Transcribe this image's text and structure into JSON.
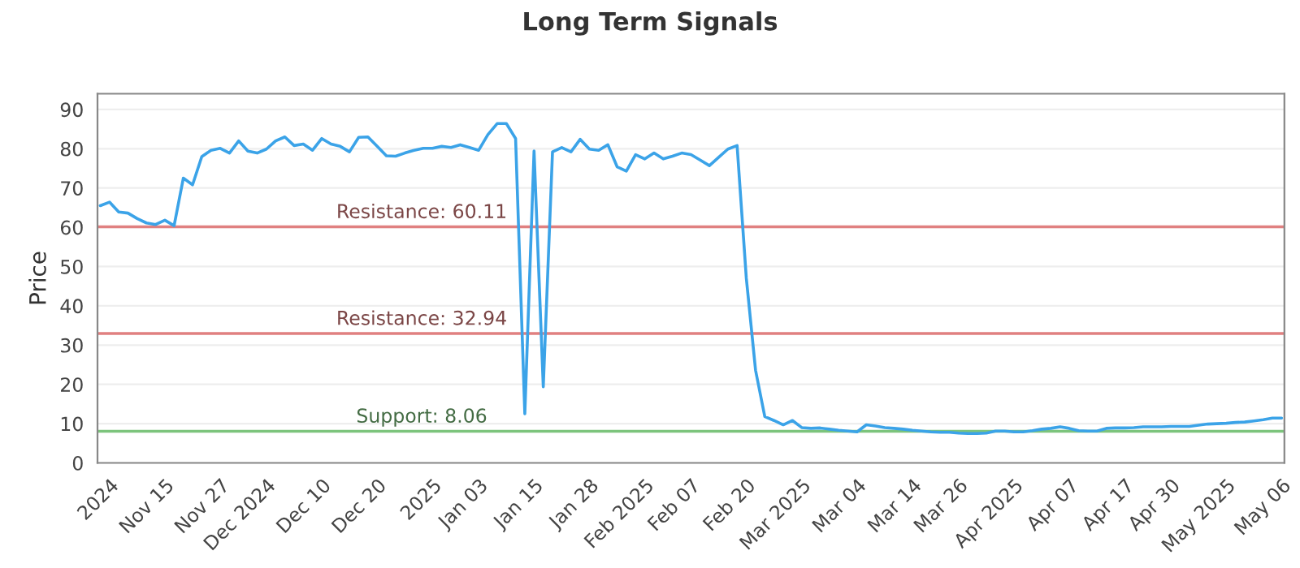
{
  "chart_data": {
    "type": "line",
    "title": "Long Term Signals",
    "ylabel": "Price",
    "categories": [
      null,
      "2024",
      null,
      null,
      null,
      null,
      null,
      "Nov 15",
      null,
      null,
      null,
      null,
      null,
      "Nov 27",
      null,
      null,
      null,
      null,
      "Dec 2024",
      null,
      null,
      null,
      null,
      null,
      "Dec 10",
      null,
      null,
      null,
      null,
      null,
      "Dec 20",
      null,
      null,
      null,
      null,
      null,
      "2025",
      null,
      null,
      null,
      null,
      "Jan 03",
      null,
      null,
      null,
      null,
      null,
      "Jan 15",
      null,
      null,
      null,
      null,
      null,
      "Jan 28",
      null,
      null,
      null,
      null,
      null,
      "Feb 2025",
      null,
      null,
      null,
      null,
      "Feb 07",
      null,
      null,
      null,
      null,
      null,
      "Feb 20",
      null,
      null,
      null,
      null,
      null,
      "Mar 2025",
      null,
      null,
      null,
      null,
      null,
      "Mar 04",
      null,
      null,
      null,
      null,
      null,
      "Mar 14",
      null,
      null,
      null,
      null,
      "Mar 26",
      null,
      null,
      null,
      null,
      null,
      "Apr 2025",
      null,
      null,
      null,
      null,
      null,
      "Apr 07",
      null,
      null,
      null,
      null,
      null,
      "Apr 17",
      null,
      null,
      null,
      null,
      "Apr 30",
      null,
      null,
      null,
      null,
      null,
      "May 2025",
      null,
      null,
      null,
      null,
      null,
      "May 06"
    ],
    "series": [
      {
        "color": "#3ba3e8",
        "values": [
          65.5,
          66.4,
          63.9,
          63.6,
          62.2,
          61.1,
          60.7,
          61.8,
          60.4,
          72.5,
          70.8,
          78,
          79.6,
          80.1,
          78.9,
          82,
          79.4,
          78.9,
          79.9,
          82,
          83,
          80.8,
          81.2,
          79.6,
          82.6,
          81.2,
          80.6,
          79.2,
          82.9,
          83,
          80.6,
          78.2,
          78.1,
          78.9,
          79.6,
          80.1,
          80.1,
          80.6,
          80.3,
          81,
          80.3,
          79.6,
          83.6,
          86.4,
          86.4,
          82.6,
          12.5,
          79.4,
          19.4,
          79.2,
          80.3,
          79.2,
          82.4,
          79.9,
          79.6,
          81,
          75.4,
          74.3,
          78.5,
          77.4,
          78.9,
          77.4,
          78.1,
          78.9,
          78.5,
          77.1,
          75.7,
          77.8,
          79.9,
          80.8,
          47,
          23.6,
          11.8,
          10.8,
          9.7,
          10.8,
          9,
          8.8,
          8.9,
          8.6,
          8.3,
          8.1,
          7.9,
          9.7,
          9.4,
          9,
          8.8,
          8.6,
          8.3,
          8.1,
          7.9,
          7.8,
          7.8,
          7.6,
          7.5,
          7.5,
          7.6,
          8.1,
          8.1,
          7.9,
          7.9,
          8.2,
          8.6,
          8.8,
          9.2,
          8.8,
          8.2,
          8.1,
          8.1,
          8.8,
          8.9,
          8.9,
          9,
          9.2,
          9.2,
          9.2,
          9.3,
          9.3,
          9.3,
          9.6,
          9.9,
          10,
          10.1,
          10.3,
          10.4,
          10.7,
          11,
          11.4,
          11.4
        ]
      }
    ],
    "ylim": [
      0,
      94
    ],
    "yticks": [
      0,
      10,
      20,
      30,
      40,
      50,
      60,
      70,
      80,
      90
    ],
    "grid": "y",
    "marker": "none",
    "line_style": "solid",
    "ref_lines": [
      {
        "axis": "y",
        "value": 60.11,
        "label": "Resistance: 60.11",
        "color": "#e08080"
      },
      {
        "axis": "y",
        "value": 32.94,
        "label": "Resistance: 32.94",
        "color": "#e08080"
      },
      {
        "axis": "y",
        "value": 8.06,
        "label": "Support: 8.06",
        "color": "#7cc47c"
      }
    ]
  }
}
